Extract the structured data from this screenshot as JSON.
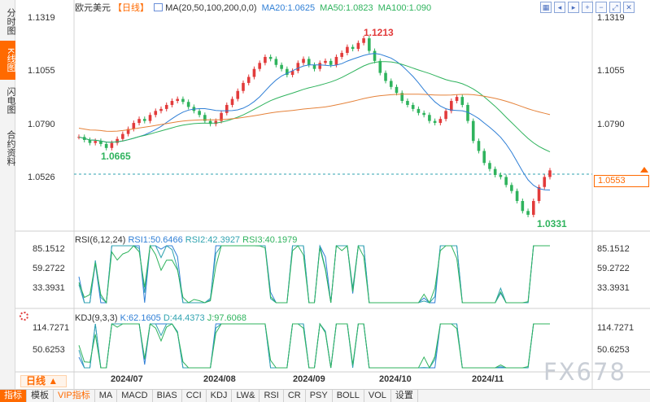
{
  "side_tabs": [
    "分时图",
    "K线图",
    "闪电图",
    "合约资料"
  ],
  "active_side_tab": 1,
  "header": {
    "symbol": "欧元美元",
    "period": "【日线】",
    "ma_params": "MA(20,50,100,200,0,0)",
    "ma20": "MA20:1.0625",
    "ma50": "MA50:1.0823",
    "ma100": "MA100:1.090"
  },
  "price_axis": [
    "1.1319",
    "1.1055",
    "1.0790",
    "1.0526"
  ],
  "price_axis_left": [
    "1.1319",
    "1.1055",
    "1.0790",
    "1.0526"
  ],
  "current_price": "1.0553",
  "annotations": {
    "high": "1.1213",
    "low1": "1.0665",
    "low2": "1.0331"
  },
  "rsi": {
    "name": "RSI(6,12,24)",
    "rsi1": "RSI1:50.6466",
    "rsi2": "RSI2:42.3927",
    "rsi3": "RSI3:40.1979",
    "axis": [
      "85.1512",
      "59.2722",
      "33.3931"
    ]
  },
  "kdj": {
    "name": "KDJ(9,3,3)",
    "k": "K:62.1605",
    "d": "D:44.4373",
    "j": "J:97.6068",
    "axis": [
      "114.7271",
      "50.6253"
    ]
  },
  "period_button": "日线",
  "dates": [
    "2024/07",
    "2024/08",
    "2024/09",
    "2024/10",
    "2024/11"
  ],
  "bottom_tabs": [
    "指标",
    "模板",
    "VIP指标",
    "MA",
    "MACD",
    "BIAS",
    "CCI",
    "KDJ",
    "LW&",
    "RSI",
    "CR",
    "PSY",
    "BOLL",
    "VOL",
    "设置"
  ],
  "watermark": "FX678",
  "colors": {
    "up": "#e23b3b",
    "down": "#2fb35d",
    "accent": "#ff6a00",
    "ma20": "#2f7fd6",
    "ma50": "#2fb35d",
    "ma100": "#2fb35d",
    "ma200": "#e5823a"
  }
}
